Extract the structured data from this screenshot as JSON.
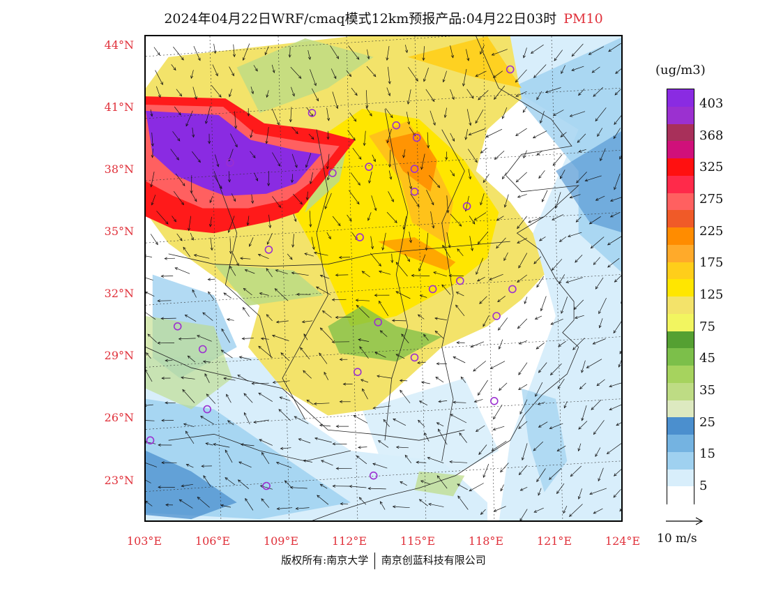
{
  "title": {
    "main": "2024年04月22日WRF/cmaq模式12km预报产品:04月22日03时",
    "pollutant": "PM10"
  },
  "map": {
    "lat_labels": [
      "44°N",
      "41°N",
      "38°N",
      "35°N",
      "32°N",
      "29°N",
      "26°N",
      "23°N"
    ],
    "lon_labels": [
      "103°E",
      "106°E",
      "109°E",
      "112°E",
      "115°E",
      "118°E",
      "121°E",
      "124°E"
    ],
    "lat_range": [
      21.0,
      44.5
    ],
    "lon_range": [
      103.0,
      124.0
    ],
    "colors": {
      "purple": "#8a2be2",
      "red": "#ff1a1a",
      "orange": "#ff8c00",
      "yellow": "#ffe600",
      "light_yellow": "#f3e36a",
      "green": "#7cbf4a",
      "light_green": "#bedc84",
      "blue": "#4b8fce",
      "light_blue": "#9fd1f0",
      "pale_blue": "#d8eefb"
    },
    "stations": [
      {
        "lon": 119.0,
        "lat": 42.9
      },
      {
        "lon": 110.3,
        "lat": 40.8
      },
      {
        "lon": 114.0,
        "lat": 40.2
      },
      {
        "lon": 114.9,
        "lat": 39.6
      },
      {
        "lon": 106.7,
        "lat": 38.4
      },
      {
        "lon": 111.2,
        "lat": 37.9
      },
      {
        "lon": 112.8,
        "lat": 38.2
      },
      {
        "lon": 114.8,
        "lat": 38.1
      },
      {
        "lon": 114.8,
        "lat": 37.0
      },
      {
        "lon": 117.1,
        "lat": 36.3
      },
      {
        "lon": 112.4,
        "lat": 34.8
      },
      {
        "lon": 108.4,
        "lat": 34.2
      },
      {
        "lon": 116.8,
        "lat": 32.7
      },
      {
        "lon": 115.6,
        "lat": 32.3
      },
      {
        "lon": 119.1,
        "lat": 32.3
      },
      {
        "lon": 113.2,
        "lat": 30.7
      },
      {
        "lon": 118.4,
        "lat": 31.0
      },
      {
        "lon": 104.4,
        "lat": 30.5
      },
      {
        "lon": 105.5,
        "lat": 29.4
      },
      {
        "lon": 114.8,
        "lat": 29.0
      },
      {
        "lon": 112.3,
        "lat": 28.3
      },
      {
        "lon": 118.3,
        "lat": 26.9
      },
      {
        "lon": 105.7,
        "lat": 26.5
      },
      {
        "lon": 103.2,
        "lat": 25.0
      },
      {
        "lon": 113.0,
        "lat": 23.3
      },
      {
        "lon": 108.3,
        "lat": 22.8
      }
    ]
  },
  "legend": {
    "unit": "(ug/m3)",
    "colors": [
      "#ffffff",
      "#d8eefb",
      "#9fd1f0",
      "#74b3e1",
      "#4b8fce",
      "#dde9c0",
      "#bedc84",
      "#a6d35e",
      "#7cbf4a",
      "#55a032",
      "#f2f560",
      "#f3e36a",
      "#ffe600",
      "#ffce1a",
      "#ffaa2a",
      "#ff8c00",
      "#f05a28",
      "#ff6060",
      "#ff2a4a",
      "#ff1010",
      "#d0107a",
      "#a8305a",
      "#9b30d0",
      "#8a2be2"
    ],
    "labels": [
      "5",
      "15",
      "25",
      "35",
      "45",
      "75",
      "125",
      "175",
      "225",
      "275",
      "325",
      "368",
      "403"
    ]
  },
  "wind": {
    "reference_label": "10 m/s"
  },
  "copyright": {
    "left": "版权所有:南京大学",
    "right": "南京创蓝科技有限公司"
  }
}
